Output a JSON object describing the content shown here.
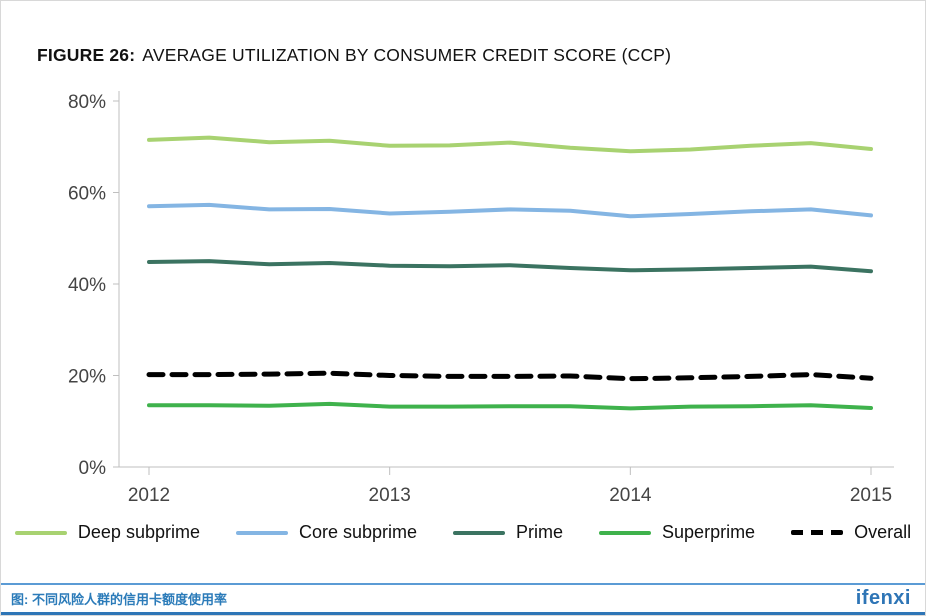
{
  "figure": {
    "label": "FIGURE 26:",
    "title": "AVERAGE UTILIZATION BY CONSUMER CREDIT SCORE (CCP)"
  },
  "footer": {
    "caption": "图: 不同风险人群的信用卡额度使用率",
    "logo": "ifenxi",
    "accent_color": "#2e75b6"
  },
  "chart_data": {
    "type": "line",
    "title": "AVERAGE UTILIZATION BY CONSUMER CREDIT SCORE (CCP)",
    "figure_label": "FIGURE 26:",
    "x_unit": "quarterly (2012 Q1 – 2015 Q1)",
    "x_tick_labels": [
      "2012",
      "2013",
      "2014",
      "2015"
    ],
    "x_tick_indices": [
      0,
      4,
      8,
      12
    ],
    "y_ticks": [
      0,
      20,
      40,
      60,
      80
    ],
    "y_tick_labels": [
      "0%",
      "20%",
      "40%",
      "60%",
      "80%"
    ],
    "ylim": [
      0,
      80
    ],
    "grid": false,
    "legend_position": "bottom",
    "axis_color": "#bfbfbf",
    "series": [
      {
        "name": "Deep subprime",
        "color": "#a8d271",
        "dash": null,
        "values": [
          71.5,
          72.0,
          71.0,
          71.3,
          70.2,
          70.3,
          70.9,
          69.8,
          69.0,
          69.4,
          70.2,
          70.8,
          69.5
        ]
      },
      {
        "name": "Core subprime",
        "color": "#84b5e3",
        "dash": null,
        "values": [
          57.0,
          57.3,
          56.3,
          56.4,
          55.4,
          55.8,
          56.3,
          56.0,
          54.8,
          55.3,
          55.9,
          56.3,
          55.0
        ]
      },
      {
        "name": "Prime",
        "color": "#3b7361",
        "dash": null,
        "values": [
          44.8,
          45.0,
          44.3,
          44.6,
          44.0,
          43.9,
          44.1,
          43.5,
          43.0,
          43.2,
          43.5,
          43.8,
          42.8
        ]
      },
      {
        "name": "Superprime",
        "color": "#3fb24c",
        "dash": null,
        "values": [
          13.5,
          13.5,
          13.4,
          13.8,
          13.2,
          13.2,
          13.3,
          13.3,
          12.8,
          13.2,
          13.3,
          13.5,
          12.9
        ]
      },
      {
        "name": "Overall",
        "color": "#000000",
        "dash": "14 9",
        "values": [
          20.2,
          20.2,
          20.3,
          20.5,
          20.0,
          19.8,
          19.8,
          19.9,
          19.3,
          19.5,
          19.8,
          20.2,
          19.4
        ]
      }
    ]
  }
}
